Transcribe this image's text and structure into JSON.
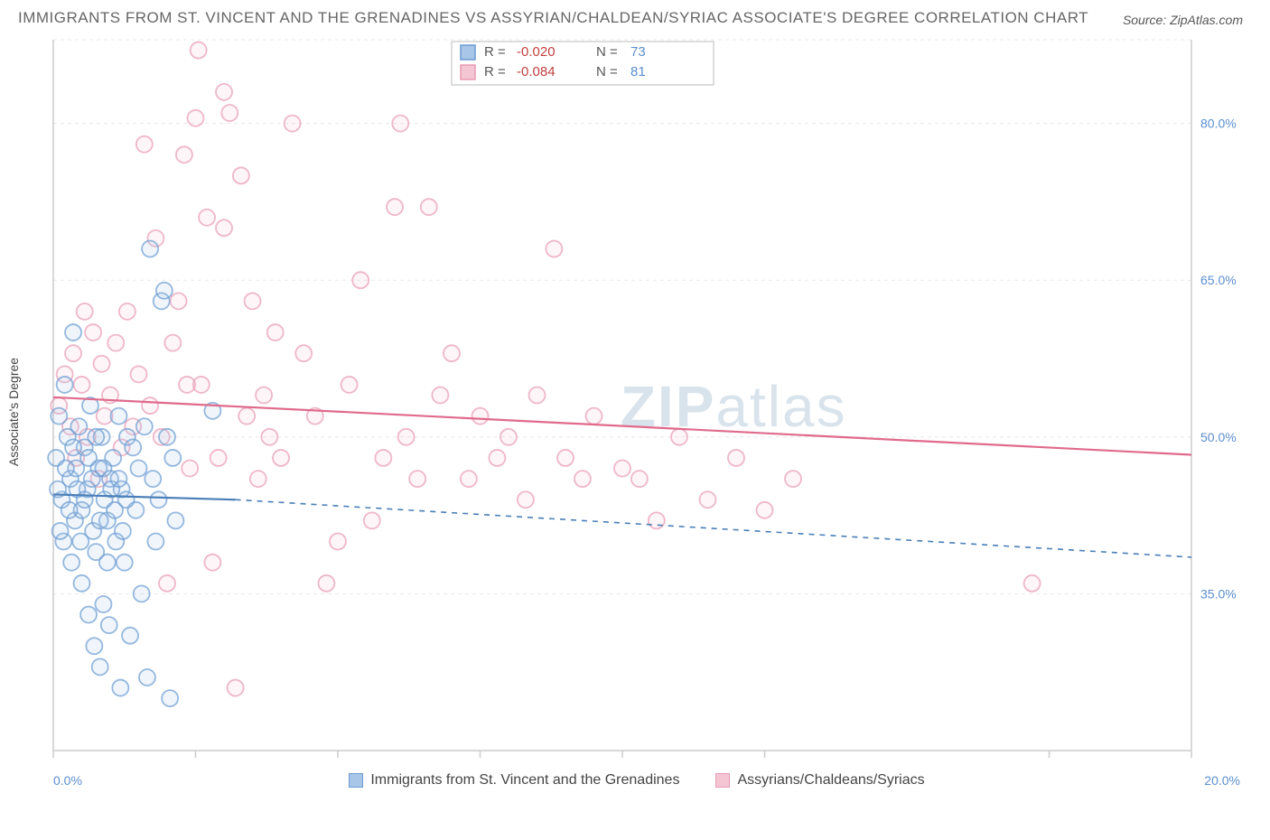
{
  "title": "IMMIGRANTS FROM ST. VINCENT AND THE GRENADINES VS ASSYRIAN/CHALDEAN/SYRIAC ASSOCIATE'S DEGREE CORRELATION CHART",
  "title_fontsize": 17,
  "source": "Source: ZipAtlas.com",
  "source_fontsize": 14,
  "y_axis_label": "Associate's Degree",
  "y_axis_label_fontsize": 14,
  "watermark": {
    "bold": "ZIP",
    "light": "atlas"
  },
  "axes": {
    "xlim": [
      0,
      20
    ],
    "ylim": [
      20,
      88
    ],
    "x_ticks": [
      0,
      2.5,
      5,
      7.5,
      10,
      12.5,
      17.5,
      20
    ],
    "x_tick_labels": {
      "0": "0.0%",
      "20": "20.0%"
    },
    "y_grid": [
      35,
      50,
      65,
      80,
      88
    ],
    "y_tick_labels": [
      "35.0%",
      "50.0%",
      "65.0%",
      "80.0%"
    ],
    "right_y": true
  },
  "colors": {
    "series_a_fill": "#a8c6e8",
    "series_a_stroke": "#6b9bd2",
    "series_b_fill": "#f4c6d4",
    "series_b_stroke": "#e89ab3",
    "trend_a": "#4a7fb8",
    "trend_b": "#e06a8c",
    "link": "#5b8ecf",
    "neg": "#c04040",
    "text": "#555555",
    "grid": "#e8e8e8",
    "axis": "#cccccc",
    "bg": "#ffffff",
    "watermark": "#d9e3ec"
  },
  "marker_radius": 9,
  "legend_top": {
    "rows": [
      {
        "R_value": "-0.020",
        "N_value": "73",
        "swatch": "a"
      },
      {
        "R_value": "-0.084",
        "N_value": "81",
        "swatch": "b"
      }
    ],
    "R_label": "R =",
    "N_label": "N ="
  },
  "legend_bottom": {
    "a": "Immigrants from St. Vincent and the Grenadines",
    "b": "Assyrians/Chaldeans/Syriacs"
  },
  "trend_lines": {
    "a_solid": {
      "x1": 0,
      "y1": 44.5,
      "x2": 3.2,
      "y2": 44.0
    },
    "a_dash": {
      "x1": 3.2,
      "y1": 44.0,
      "x2": 20,
      "y2": 38.5
    },
    "b": {
      "x1": 0,
      "y1": 53.8,
      "x2": 20,
      "y2": 48.3
    }
  },
  "series_a": [
    [
      0.05,
      48
    ],
    [
      0.1,
      52
    ],
    [
      0.15,
      44
    ],
    [
      0.18,
      40
    ],
    [
      0.2,
      55
    ],
    [
      0.25,
      50
    ],
    [
      0.3,
      46
    ],
    [
      0.32,
      38
    ],
    [
      0.35,
      60
    ],
    [
      0.38,
      42
    ],
    [
      0.4,
      47
    ],
    [
      0.45,
      51
    ],
    [
      0.5,
      43
    ],
    [
      0.5,
      36
    ],
    [
      0.55,
      49
    ],
    [
      0.6,
      45
    ],
    [
      0.62,
      33
    ],
    [
      0.65,
      53
    ],
    [
      0.7,
      41
    ],
    [
      0.72,
      30
    ],
    [
      0.75,
      39
    ],
    [
      0.8,
      47
    ],
    [
      0.82,
      28
    ],
    [
      0.85,
      50
    ],
    [
      0.88,
      34
    ],
    [
      0.9,
      44
    ],
    [
      0.95,
      42
    ],
    [
      0.98,
      32
    ],
    [
      1.0,
      46
    ],
    [
      1.05,
      48
    ],
    [
      1.1,
      40
    ],
    [
      1.15,
      52
    ],
    [
      1.18,
      26
    ],
    [
      1.2,
      45
    ],
    [
      1.25,
      38
    ],
    [
      1.3,
      50
    ],
    [
      1.35,
      31
    ],
    [
      1.4,
      49
    ],
    [
      1.45,
      43
    ],
    [
      1.5,
      47
    ],
    [
      1.55,
      35
    ],
    [
      1.6,
      51
    ],
    [
      1.65,
      27
    ],
    [
      1.7,
      68
    ],
    [
      1.75,
      46
    ],
    [
      1.8,
      40
    ],
    [
      1.85,
      44
    ],
    [
      1.9,
      63
    ],
    [
      1.95,
      64
    ],
    [
      2.0,
      50
    ],
    [
      2.05,
      25
    ],
    [
      2.1,
      48
    ],
    [
      2.15,
      42
    ],
    [
      0.08,
      45
    ],
    [
      0.12,
      41
    ],
    [
      0.22,
      47
    ],
    [
      0.28,
      43
    ],
    [
      0.35,
      49
    ],
    [
      0.42,
      45
    ],
    [
      0.48,
      40
    ],
    [
      0.55,
      44
    ],
    [
      0.62,
      48
    ],
    [
      0.68,
      46
    ],
    [
      0.75,
      50
    ],
    [
      0.82,
      42
    ],
    [
      0.88,
      47
    ],
    [
      0.95,
      38
    ],
    [
      1.02,
      45
    ],
    [
      1.08,
      43
    ],
    [
      1.15,
      46
    ],
    [
      1.22,
      41
    ],
    [
      1.28,
      44
    ],
    [
      2.8,
      52.5
    ]
  ],
  "series_b": [
    [
      0.1,
      53
    ],
    [
      0.2,
      56
    ],
    [
      0.3,
      51
    ],
    [
      0.35,
      58
    ],
    [
      0.4,
      48
    ],
    [
      0.5,
      55
    ],
    [
      0.55,
      62
    ],
    [
      0.6,
      50
    ],
    [
      0.7,
      60
    ],
    [
      0.8,
      46
    ],
    [
      0.85,
      57
    ],
    [
      0.9,
      52
    ],
    [
      1.0,
      54
    ],
    [
      1.1,
      59
    ],
    [
      1.2,
      49
    ],
    [
      1.3,
      62
    ],
    [
      1.4,
      51
    ],
    [
      1.5,
      56
    ],
    [
      1.6,
      78
    ],
    [
      1.7,
      53
    ],
    [
      1.8,
      69
    ],
    [
      1.9,
      50
    ],
    [
      2.0,
      36
    ],
    [
      2.1,
      59
    ],
    [
      2.2,
      63
    ],
    [
      2.3,
      77
    ],
    [
      2.4,
      47
    ],
    [
      2.5,
      80.5
    ],
    [
      2.6,
      55
    ],
    [
      2.7,
      71
    ],
    [
      2.8,
      38
    ],
    [
      2.9,
      48
    ],
    [
      3.0,
      70
    ],
    [
      3.1,
      81
    ],
    [
      3.2,
      26
    ],
    [
      3.3,
      75
    ],
    [
      3.4,
      52
    ],
    [
      3.5,
      63
    ],
    [
      3.6,
      46
    ],
    [
      3.7,
      54
    ],
    [
      3.8,
      50
    ],
    [
      3.9,
      60
    ],
    [
      4.0,
      48
    ],
    [
      4.2,
      80
    ],
    [
      4.4,
      58
    ],
    [
      4.6,
      52
    ],
    [
      4.8,
      36
    ],
    [
      5.0,
      40
    ],
    [
      5.2,
      55
    ],
    [
      5.4,
      65
    ],
    [
      5.6,
      42
    ],
    [
      5.8,
      48
    ],
    [
      6.0,
      72
    ],
    [
      6.1,
      80
    ],
    [
      6.2,
      50
    ],
    [
      6.4,
      46
    ],
    [
      6.6,
      72
    ],
    [
      6.8,
      54
    ],
    [
      7.0,
      58
    ],
    [
      7.3,
      46
    ],
    [
      7.5,
      52
    ],
    [
      7.8,
      48
    ],
    [
      8.0,
      50
    ],
    [
      8.3,
      44
    ],
    [
      8.5,
      54
    ],
    [
      8.8,
      68
    ],
    [
      9.0,
      48
    ],
    [
      9.3,
      46
    ],
    [
      9.5,
      52
    ],
    [
      10.0,
      47
    ],
    [
      10.3,
      46
    ],
    [
      10.6,
      42
    ],
    [
      11.0,
      50
    ],
    [
      11.5,
      44
    ],
    [
      12.0,
      48
    ],
    [
      12.5,
      43
    ],
    [
      13.0,
      46
    ],
    [
      17.2,
      36
    ],
    [
      2.35,
      55
    ],
    [
      2.55,
      87
    ],
    [
      3.0,
      83
    ]
  ]
}
